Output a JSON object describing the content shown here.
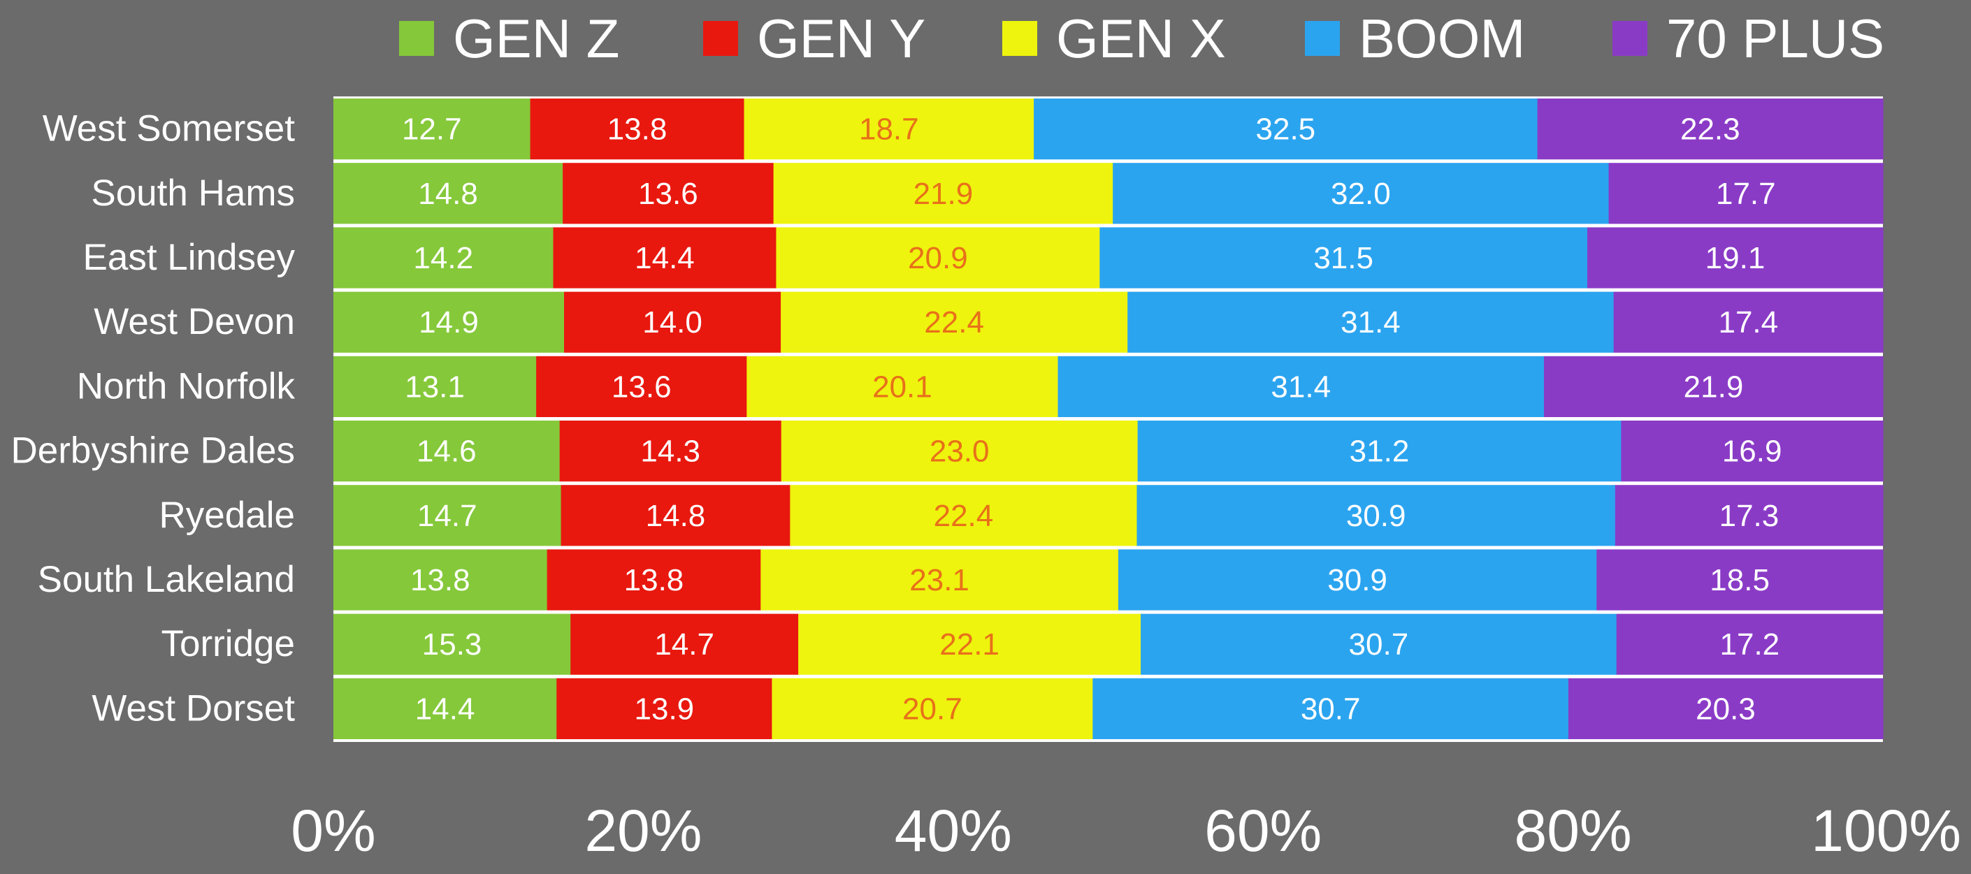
{
  "chart_data": {
    "type": "bar",
    "orientation": "horizontal",
    "stacked": true,
    "percent_axis": true,
    "categories": [
      "West Somerset",
      "South Hams",
      "East Lindsey",
      "West Devon",
      "North Norfolk",
      "Derbyshire Dales",
      "Ryedale",
      "South Lakeland",
      "Torridge",
      "West Dorset"
    ],
    "series": [
      {
        "name": "GEN Z",
        "color": "#85c83a",
        "label_color": "#ffffff",
        "values": [
          12.7,
          14.8,
          14.2,
          14.9,
          13.1,
          14.6,
          14.7,
          13.8,
          15.3,
          14.4
        ]
      },
      {
        "name": "GEN Y",
        "color": "#e8180f",
        "label_color": "#ffffff",
        "values": [
          13.8,
          13.6,
          14.4,
          14.0,
          13.6,
          14.3,
          14.8,
          13.8,
          14.7,
          13.9
        ]
      },
      {
        "name": "GEN X",
        "color": "#eef40d",
        "label_color": "#e8701a",
        "values": [
          18.7,
          21.9,
          20.9,
          22.4,
          20.1,
          23.0,
          22.4,
          23.1,
          22.1,
          20.7
        ]
      },
      {
        "name": "BOOM",
        "color": "#2ba4ef",
        "label_color": "#ffffff",
        "values": [
          32.5,
          32.0,
          31.5,
          31.4,
          31.4,
          31.2,
          30.9,
          30.9,
          30.7,
          30.7
        ]
      },
      {
        "name": "70 PLUS",
        "color": "#8a3bc6",
        "label_color": "#ffffff",
        "values": [
          22.3,
          17.7,
          19.1,
          17.4,
          21.9,
          16.9,
          17.3,
          18.5,
          17.2,
          20.3
        ]
      }
    ],
    "xlim": [
      0,
      100
    ],
    "x_ticks": [
      "0%",
      "20%",
      "40%",
      "60%",
      "80%",
      "100%"
    ],
    "legend_position": "top",
    "grid": false,
    "colors": {
      "background": "#6b6b6b",
      "separator": "#ffffff",
      "text": "#ffffff"
    }
  }
}
